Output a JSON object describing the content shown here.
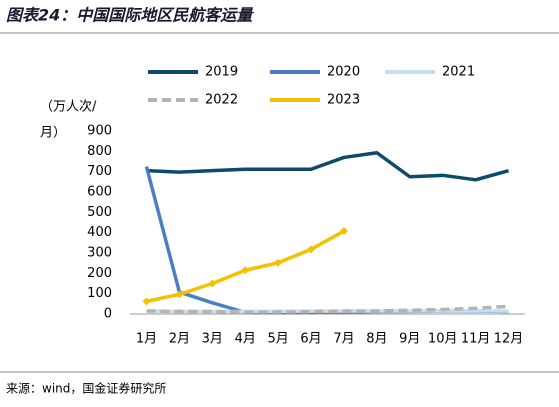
{
  "title": "图表24：中国国际地区民航客运量",
  "source": "来源：wind，国金证券研究所",
  "chart_data": {
    "type": "line",
    "y_label": [
      "（万人次/",
      "月）"
    ],
    "categories": [
      "1月",
      "2月",
      "3月",
      "4月",
      "5月",
      "6月",
      "7月",
      "8月",
      "9月",
      "10月",
      "11月",
      "12月"
    ],
    "series": [
      {
        "name": "2019",
        "color": "#0d4a6b",
        "values": [
          705,
          698,
          705,
          712,
          712,
          712,
          770,
          793,
          675,
          682,
          660,
          705
        ]
      },
      {
        "name": "2020",
        "color": "#4a80c2",
        "values": [
          725,
          108,
          55,
          8,
          7,
          8,
          10,
          12,
          13,
          15,
          15,
          12
        ]
      },
      {
        "name": "2021",
        "color": "#c6def1",
        "values": [
          15,
          12,
          12,
          12,
          13,
          14,
          15,
          15,
          15,
          16,
          16,
          14
        ]
      },
      {
        "name": "2022",
        "color": "#b3b3b3",
        "dash": true,
        "values": [
          15,
          12,
          12,
          10,
          10,
          12,
          14,
          15,
          18,
          22,
          28,
          38
        ]
      },
      {
        "name": "2023",
        "color": "#f5c000",
        "marker": "diamond",
        "values": [
          62,
          97,
          150,
          215,
          252,
          318,
          408,
          null,
          null,
          null,
          null,
          null
        ]
      }
    ],
    "ylim": [
      0,
      900
    ],
    "yticks": [
      0,
      100,
      200,
      300,
      400,
      500,
      600,
      700,
      800,
      900
    ],
    "grid": false
  }
}
